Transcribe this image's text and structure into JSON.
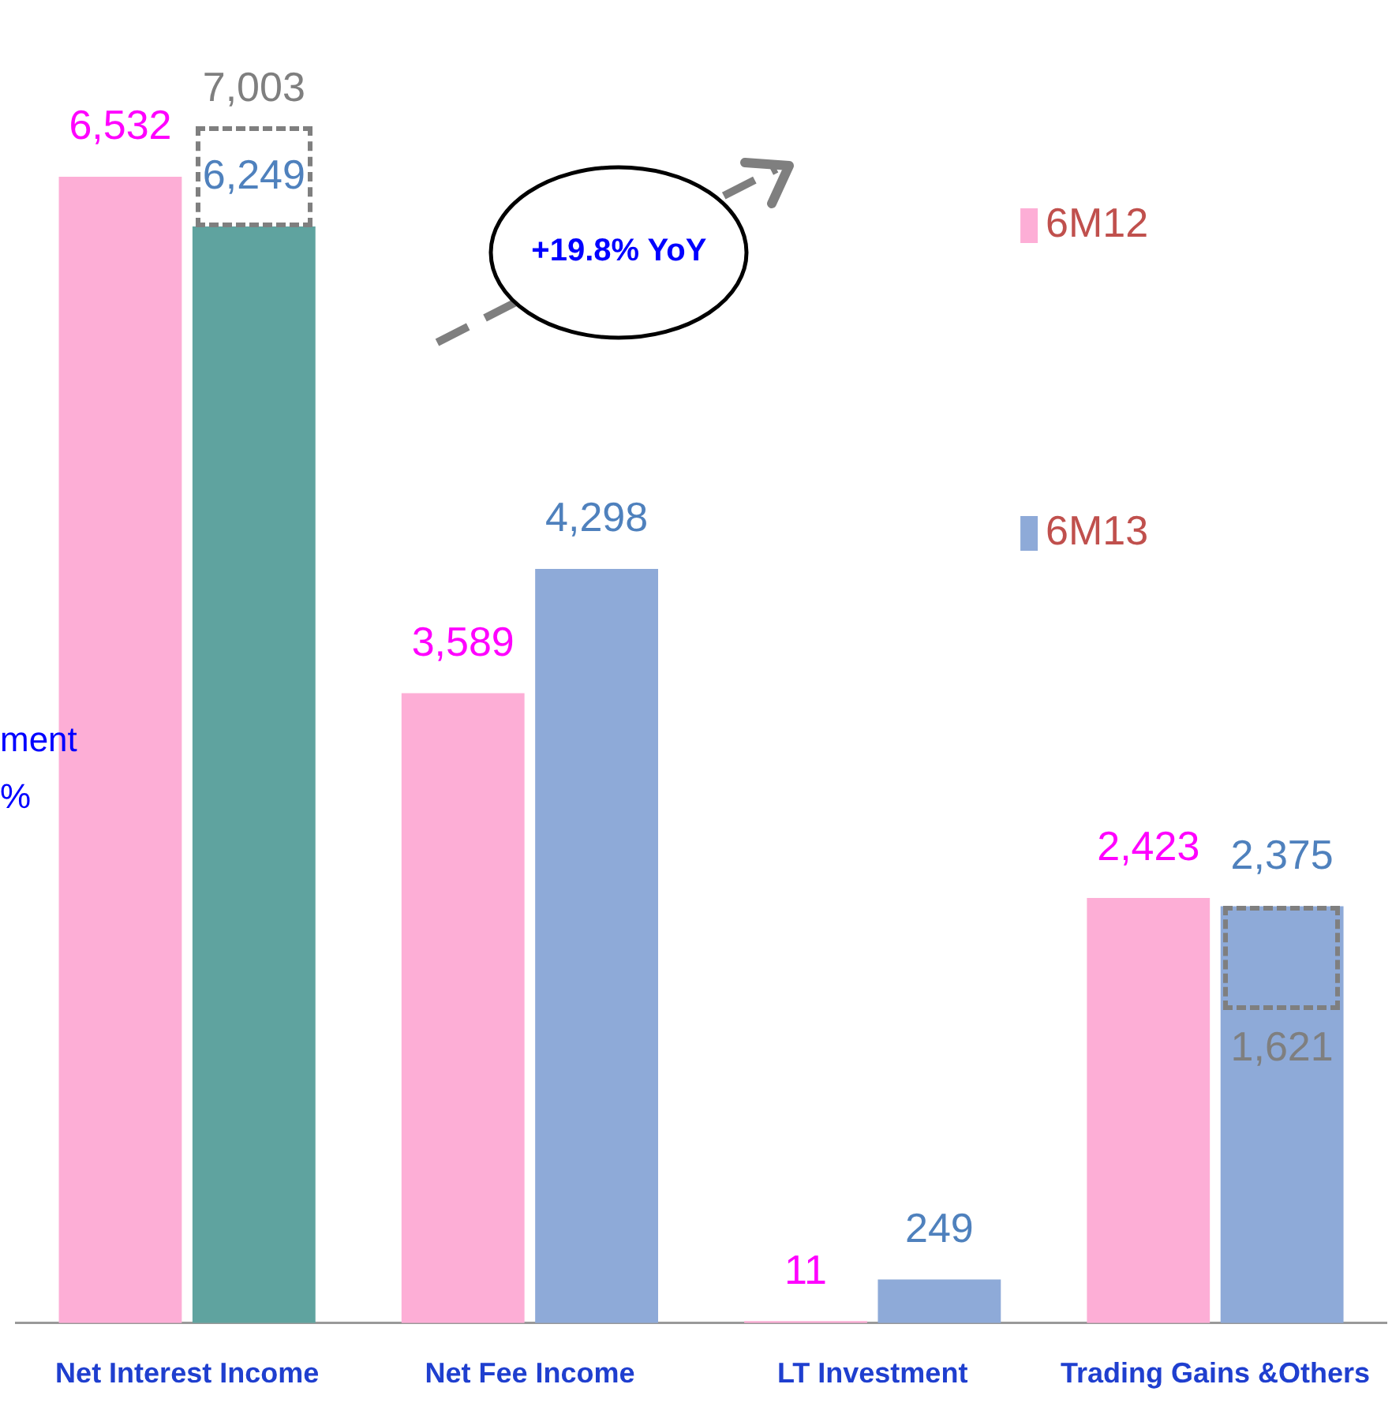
{
  "chart_data": {
    "type": "bar",
    "categories": [
      "Net Interest Income",
      "Net Fee Income",
      "LT Investment",
      "Trading Gains &Others"
    ],
    "series": [
      {
        "name": "6M12",
        "color": "#fdaed6",
        "values": [
          6532,
          3589,
          11,
          2423
        ],
        "value_labels": [
          "6,532",
          "3,589",
          "11",
          "2,423"
        ]
      },
      {
        "name": "6M13",
        "color": "#8eaad8",
        "colors": [
          "#5fa39f",
          "#8eaad8",
          "#8eaad8",
          "#8eaad8"
        ],
        "values": [
          6249,
          4298,
          249,
          2375
        ],
        "value_labels": [
          "6,249",
          "4,298",
          "249",
          "2,375"
        ]
      }
    ],
    "legend": "right",
    "annotations": [
      "+19.8% YoY",
      "7,003",
      "1,621",
      "ment",
      "%"
    ]
  }
}
